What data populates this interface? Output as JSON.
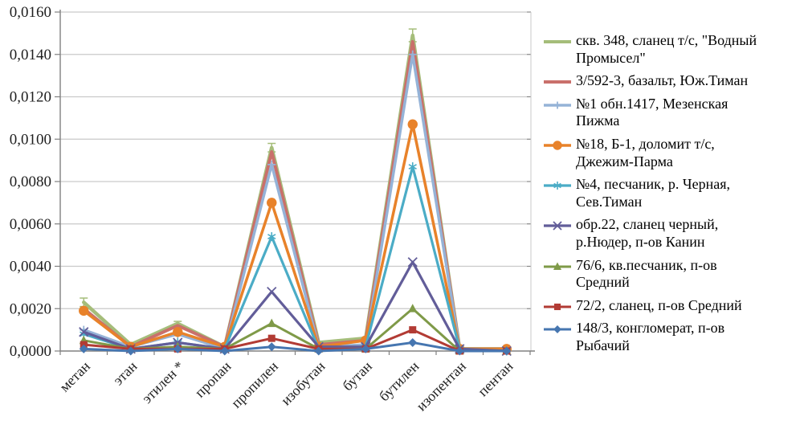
{
  "chart_data": {
    "type": "line",
    "title": "",
    "xlabel": "",
    "ylabel": "",
    "grid": "horizontal",
    "legend_position": "right",
    "ylim": [
      0,
      0.016
    ],
    "y_step": 0.002,
    "y_ticks": [
      "0,0000",
      "0,0020",
      "0,0040",
      "0,0060",
      "0,0080",
      "0,0100",
      "0,0120",
      "0,0140",
      "0,0160"
    ],
    "categories": [
      "метан",
      "этан",
      "этилен *",
      "пропан",
      "пропилен",
      "изобутан",
      "бутан",
      "бутилен",
      "изопентан",
      "пентан"
    ],
    "series": [
      {
        "name": "скв. 348, сланец т/с, \"Водный Промысел\"",
        "color": "#A5BD7A",
        "marker": "none",
        "line_width": 4.5,
        "marker_size": 0,
        "values": [
          0.0023,
          0.0003,
          0.0013,
          0.0002,
          0.0096,
          0.0004,
          0.0006,
          0.0149,
          0.0001,
          0.0001
        ],
        "errors": [
          0.0002,
          0.0001,
          0.0001,
          0,
          0.0002,
          0,
          0,
          0.0003,
          0,
          0
        ]
      },
      {
        "name": "3/592-3, базальт, Юж.Тиман",
        "color": "#C9706B",
        "marker": "none",
        "line_width": 4,
        "marker_size": 0,
        "values": [
          0.002,
          0.0002,
          0.0012,
          0.0002,
          0.0094,
          0.0003,
          0.0005,
          0.0146,
          0.0001,
          0.0001
        ]
      },
      {
        "name": "№1 обн.1417, Мезенская Пижма",
        "color": "#95B3D7",
        "marker": "plus",
        "line_width": 3.5,
        "marker_size": 10,
        "values": [
          0.001,
          0.0002,
          0.0008,
          0.0001,
          0.0088,
          0.0002,
          0.0003,
          0.014,
          0.0001,
          0.0001
        ]
      },
      {
        "name": "№18, Б-1, доломит т/с, Джежим-Парма",
        "color": "#E8822A",
        "marker": "circle",
        "line_width": 3.5,
        "marker_size": 12,
        "values": [
          0.0019,
          0.0002,
          0.0009,
          0.0002,
          0.007,
          0.0002,
          0.0005,
          0.0107,
          0.0001,
          0.0001
        ]
      },
      {
        "name": "№4, песчаник, р. Черная, Сев.Тиман",
        "color": "#4BACC6",
        "marker": "asterisk",
        "line_width": 3.2,
        "marker_size": 11,
        "values": [
          0.0008,
          0.0001,
          0.0004,
          0.0001,
          0.0054,
          0.0001,
          0.0002,
          0.0087,
          0.0001,
          0.0
        ]
      },
      {
        "name": "обр.22, сланец черный, р.Нюдер, п-ов Канин",
        "color": "#625D99",
        "marker": "x",
        "line_width": 3.2,
        "marker_size": 11,
        "values": [
          0.0009,
          0.0001,
          0.0004,
          0.0001,
          0.0028,
          0.0002,
          0.0002,
          0.0042,
          0.0001,
          0.0
        ]
      },
      {
        "name": "76/6, кв.песчаник, п-ов Средний",
        "color": "#7F9A48",
        "marker": "triangle",
        "line_width": 3,
        "marker_size": 11,
        "values": [
          0.0005,
          0.0001,
          0.0002,
          0.0001,
          0.0013,
          0.0001,
          0.0001,
          0.002,
          0.0,
          0.0
        ]
      },
      {
        "name": "72/2, сланец, п-ов Средний",
        "color": "#B23B34",
        "marker": "square",
        "line_width": 3,
        "marker_size": 10,
        "values": [
          0.0003,
          0.0001,
          0.0001,
          0.0001,
          0.0006,
          0.0001,
          0.0001,
          0.001,
          0.0,
          0.0
        ]
      },
      {
        "name": "148/3, конгломерат, п-ов Рыбачий",
        "color": "#4676B0",
        "marker": "diamond",
        "line_width": 3,
        "marker_size": 10,
        "values": [
          0.0001,
          0.0,
          0.0001,
          0.0,
          0.0002,
          0.0,
          0.0001,
          0.0004,
          0.0,
          0.0
        ]
      }
    ]
  },
  "colors": {
    "axis": "#808080",
    "grid": "#C9C9C9",
    "text": "#1F1F1F",
    "background": "#FFFFFF"
  }
}
